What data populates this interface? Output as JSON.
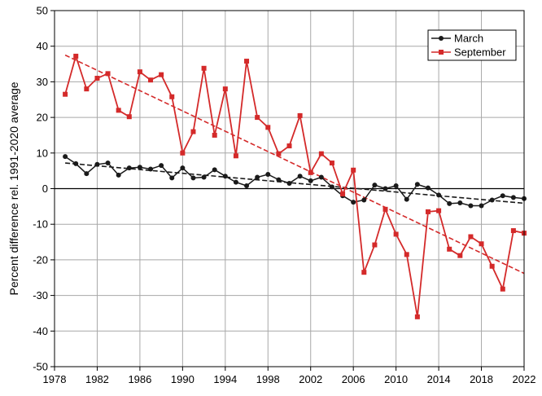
{
  "chart_data": {
    "type": "line",
    "title": "",
    "xlabel": "",
    "ylabel": "Percent difference rel. 1991-2020 average",
    "xlim": [
      1978,
      2022
    ],
    "ylim": [
      -50,
      50
    ],
    "x_ticks": [
      "1978",
      "1982",
      "1986",
      "1990",
      "1994",
      "1998",
      "2002",
      "2006",
      "2010",
      "2014",
      "2018",
      "2022"
    ],
    "y_ticks": [
      "50",
      "40",
      "30",
      "20",
      "10",
      "0",
      "-10",
      "-20",
      "-30",
      "-40",
      "-50"
    ],
    "grid": true,
    "legend_position": "top-right",
    "series": [
      {
        "name": "March",
        "color": "#1a1a1a",
        "marker": "circle",
        "x": [
          1979,
          1980,
          1981,
          1982,
          1983,
          1984,
          1985,
          1986,
          1987,
          1988,
          1989,
          1990,
          1991,
          1992,
          1993,
          1994,
          1995,
          1996,
          1997,
          1998,
          1999,
          2000,
          2001,
          2002,
          2003,
          2004,
          2005,
          2006,
          2007,
          2008,
          2009,
          2010,
          2011,
          2012,
          2013,
          2014,
          2015,
          2016,
          2017,
          2018,
          2019,
          2020,
          2021,
          2022
        ],
        "values": [
          9.0,
          7.0,
          4.2,
          6.8,
          7.2,
          3.8,
          5.8,
          6.0,
          5.5,
          6.5,
          3.0,
          5.8,
          3.0,
          3.2,
          5.3,
          3.5,
          1.8,
          0.8,
          3.2,
          4.0,
          2.5,
          1.5,
          3.5,
          2.2,
          3.2,
          0.5,
          -2.0,
          -3.8,
          -3.2,
          1.0,
          0.0,
          0.8,
          -3.0,
          1.2,
          0.2,
          -1.8,
          -4.2,
          -4.0,
          -4.8,
          -4.8,
          -3.2,
          -2.0,
          -2.5,
          -2.8
        ]
      },
      {
        "name": "September",
        "color": "#d42a2a",
        "marker": "square",
        "x": [
          1979,
          1980,
          1981,
          1982,
          1983,
          1984,
          1985,
          1986,
          1987,
          1988,
          1989,
          1990,
          1991,
          1992,
          1993,
          1994,
          1995,
          1996,
          1997,
          1998,
          1999,
          2000,
          2001,
          2002,
          2003,
          2004,
          2005,
          2006,
          2007,
          2008,
          2009,
          2010,
          2011,
          2012,
          2013,
          2014,
          2015,
          2016,
          2017,
          2018,
          2019,
          2020,
          2021,
          2022
        ],
        "values": [
          26.5,
          37.2,
          28.0,
          31.0,
          32.3,
          22.0,
          20.2,
          32.8,
          30.5,
          32.0,
          25.8,
          10.0,
          16.0,
          33.8,
          15.0,
          28.0,
          9.2,
          35.8,
          20.0,
          17.2,
          9.8,
          12.0,
          20.5,
          4.5,
          9.8,
          7.2,
          -1.5,
          5.2,
          -23.5,
          -15.8,
          -5.8,
          -12.8,
          -18.5,
          -36.0,
          -6.5,
          -6.2,
          -17.0,
          -18.8,
          -13.5,
          -15.5,
          -21.8,
          -28.2,
          -11.8,
          -12.5
        ]
      }
    ],
    "trendlines": [
      {
        "series": "March",
        "color": "#1a1a1a",
        "x": [
          1979,
          2022
        ],
        "values": [
          7.2,
          -4.1
        ]
      },
      {
        "series": "September",
        "color": "#d42a2a",
        "x": [
          1979,
          2022
        ],
        "values": [
          37.5,
          -23.8
        ]
      }
    ]
  }
}
